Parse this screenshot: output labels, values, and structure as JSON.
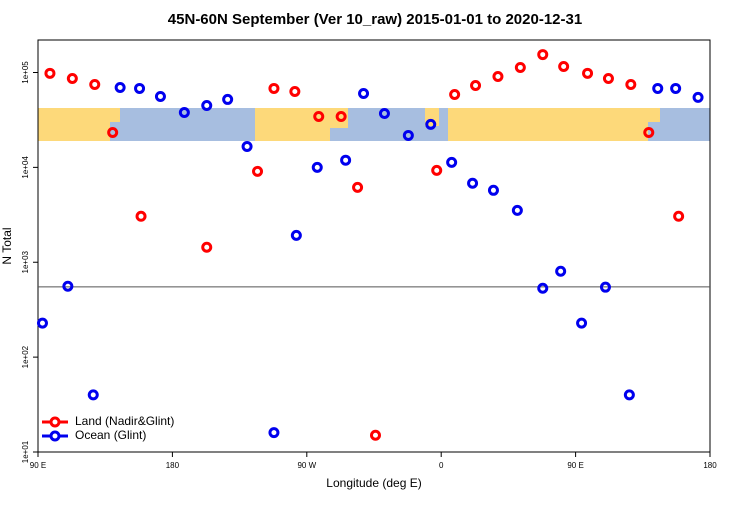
{
  "chart_data": {
    "type": "scatter",
    "title": "45N-60N September (Ver 10_raw)   2015-01-01 to 2020-12-31",
    "x_label": "Longitude (deg E)",
    "y_label": "N Total",
    "log_y": true,
    "xlim": [
      90,
      540
    ],
    "ylim": [
      10,
      220000
    ],
    "xticks": [
      {
        "value": 90,
        "label": "90 E"
      },
      180,
      {
        "value": 270,
        "label": "90 W"
      },
      {
        "value": 360,
        "label": "0"
      },
      {
        "value": 450,
        "label": "90 E"
      },
      {
        "value": 540,
        "label": "180"
      }
    ],
    "yticks": [
      {
        "value": 10,
        "label": "1e+01"
      },
      {
        "value": 100,
        "label": "1e+02"
      },
      {
        "value": 1000,
        "label": "1e+03"
      },
      {
        "value": 10000,
        "label": "1e+04"
      },
      {
        "value": 100000,
        "label": "1e+05"
      }
    ],
    "reference_line": 550,
    "legend": "bottomleft",
    "series": [
      {
        "name": "Land (Nadir&Glint)",
        "color": "#ff0000",
        "x": [
          98,
          113,
          128,
          140,
          159,
          203,
          237,
          248,
          262,
          278,
          293,
          304,
          316,
          357,
          369,
          383,
          398,
          413,
          428,
          442,
          458,
          472,
          487,
          499,
          519
        ],
        "values": [
          98000,
          86500,
          74800,
          23300,
          3050,
          1440,
          9080,
          67900,
          63000,
          34400,
          34400,
          6150,
          15,
          9300,
          58600,
          73000,
          90800,
          113000,
          154500,
          115600,
          98000,
          86500,
          74800,
          23300,
          3050
        ]
      },
      {
        "name": "Ocean (Glint)",
        "color": "#0000ee",
        "x": [
          93,
          110,
          127,
          145,
          158,
          172,
          188,
          203,
          217,
          230,
          248,
          263,
          277,
          296,
          308,
          322,
          338,
          353,
          367,
          381,
          395,
          411,
          428,
          440,
          454,
          470,
          486,
          505,
          517,
          532
        ],
        "values": [
          228,
          558,
          40,
          69500,
          67900,
          55900,
          37900,
          44900,
          52000,
          16600,
          16,
          1920,
          10000,
          11900,
          60100,
          37000,
          21700,
          28400,
          11300,
          6800,
          5730,
          3520,
          532,
          804,
          228,
          546,
          40,
          67900,
          67900,
          54600
        ]
      }
    ]
  }
}
